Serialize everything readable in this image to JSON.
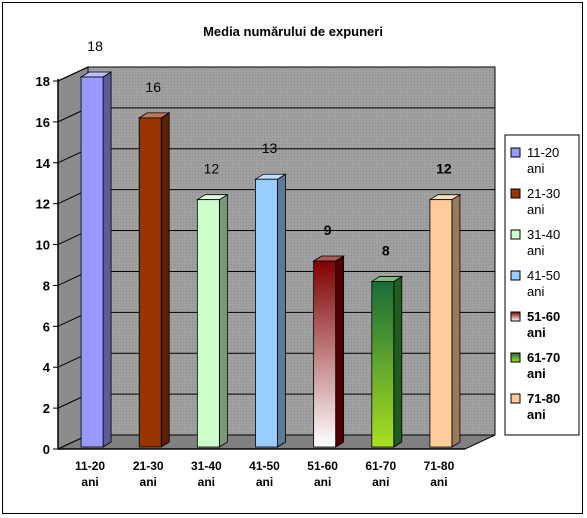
{
  "chart_data": {
    "type": "bar",
    "title": "Media numărului de expuneri",
    "xlabel": "",
    "ylabel": "",
    "ylim": [
      0,
      18
    ],
    "y_ticks": [
      "0",
      "2",
      "4",
      "6",
      "8",
      "10",
      "12",
      "14",
      "16",
      "18"
    ],
    "grid": true,
    "legend_position": "right",
    "categories": [
      [
        "11-20",
        "ani"
      ],
      [
        "21-30",
        "ani"
      ],
      [
        "31-40",
        "ani"
      ],
      [
        "41-50",
        "ani"
      ],
      [
        "51-60",
        "ani"
      ],
      [
        "61-70",
        "ani"
      ],
      [
        "71-80",
        "ani"
      ]
    ],
    "values": [
      18,
      16,
      12,
      13,
      9,
      8,
      12
    ],
    "data_labels": [
      "18",
      "16",
      "12",
      "13",
      "9",
      "8",
      "12"
    ],
    "data_label_bold": [
      false,
      false,
      false,
      false,
      true,
      true,
      true
    ],
    "colors": [
      "#9999ff",
      "#993300",
      "#ccffcc",
      "#99ccff",
      "#800000",
      "#339933",
      "#ffcc99"
    ],
    "legend": [
      [
        "11-20",
        "ani"
      ],
      [
        "21-30",
        "ani"
      ],
      [
        "31-40",
        "ani"
      ],
      [
        "41-50",
        "ani"
      ],
      [
        "51-60",
        "ani"
      ],
      [
        "61-70",
        "ani"
      ],
      [
        "71-80",
        "ani"
      ]
    ]
  }
}
